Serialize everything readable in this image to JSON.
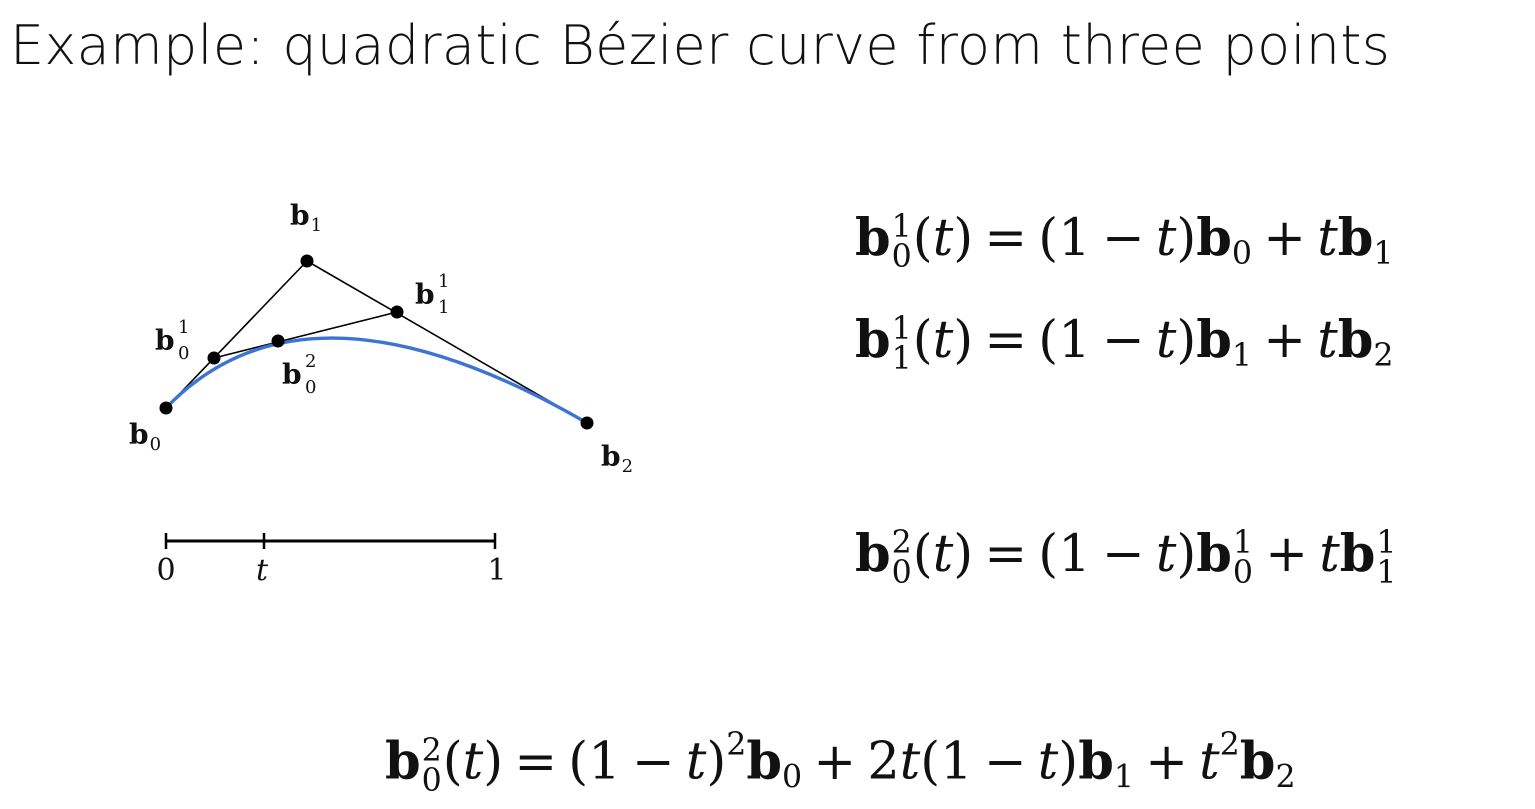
{
  "title": "Example: quadratic Bézier curve from three points",
  "diagram": {
    "points": {
      "b0": {
        "letter": "b",
        "sub": "0",
        "sup": ""
      },
      "b1": {
        "letter": "b",
        "sub": "1",
        "sup": ""
      },
      "b2": {
        "letter": "b",
        "sub": "2",
        "sup": ""
      },
      "b01": {
        "letter": "b",
        "sub": "0",
        "sup": "1"
      },
      "b11": {
        "letter": "b",
        "sub": "1",
        "sup": "1"
      },
      "b02": {
        "letter": "b",
        "sub": "0",
        "sup": "2"
      }
    },
    "scale": {
      "start": "0",
      "param": "t",
      "end": "1"
    },
    "curve_color": "#3d74d3",
    "line_color": "#000000"
  },
  "equations": {
    "eq1": {
      "lhs_sub": "0",
      "lhs_sup": "1",
      "t": "t",
      "one": "1",
      "p_sub": "0",
      "p_sup": "",
      "q_sub": "1",
      "q_sup": ""
    },
    "eq2": {
      "lhs_sub": "1",
      "lhs_sup": "1",
      "t": "t",
      "one": "1",
      "p_sub": "1",
      "p_sup": "",
      "q_sub": "2",
      "q_sup": ""
    },
    "eq3": {
      "lhs_sub": "0",
      "lhs_sup": "2",
      "t": "t",
      "one": "1",
      "p_sub": "0",
      "p_sup": "1",
      "q_sub": "1",
      "q_sup": "1"
    },
    "eq4": {
      "lhs_sub": "0",
      "lhs_sup": "2",
      "t": "t",
      "one": "1",
      "two": "2",
      "sq": "2",
      "s0": "0",
      "s1": "1",
      "s2": "2"
    }
  }
}
